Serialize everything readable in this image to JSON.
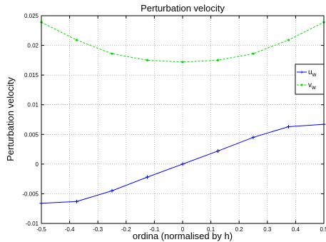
{
  "chart_data": {
    "type": "line",
    "title": "Perturbation velocity",
    "xlabel": "ordina (normalised by h)",
    "ylabel": "Perturbation velocity",
    "xlim": [
      -0.5,
      0.5
    ],
    "ylim": [
      -0.01,
      0.025
    ],
    "x_ticks": [
      -0.5,
      -0.4,
      -0.3,
      -0.2,
      -0.1,
      0,
      0.1,
      0.2,
      0.3,
      0.4,
      0.5
    ],
    "x_tick_labels": [
      "-0.5",
      "-0.4",
      "-0.3",
      "-0.2",
      "-0.1",
      "0",
      "0.1",
      "0.2",
      "0.3",
      "0.4",
      "0.5"
    ],
    "y_ticks": [
      -0.01,
      -0.005,
      0,
      0.005,
      0.01,
      0.015,
      0.02,
      0.025
    ],
    "y_tick_labels": [
      "-0.01",
      "-0.005",
      "0",
      "0.005",
      "0.01",
      "0.015",
      "0.02",
      "0.025"
    ],
    "grid": true,
    "legend_position": "right",
    "x": [
      -0.5,
      -0.375,
      -0.25,
      -0.125,
      0,
      0.125,
      0.25,
      0.375,
      0.5
    ],
    "series": [
      {
        "name": "u",
        "subscript": "w",
        "color": "#0000ff",
        "line_style": "solid",
        "marker": "plus",
        "values": [
          -0.0066,
          -0.0063,
          -0.0045,
          -0.0022,
          0.0,
          0.0022,
          0.0045,
          0.0063,
          0.0067
        ]
      },
      {
        "name": "v",
        "subscript": "w",
        "color": "#00e000",
        "line_style": "dashed",
        "marker": "dot",
        "values": [
          0.0239,
          0.0209,
          0.0186,
          0.0175,
          0.0172,
          0.0175,
          0.0186,
          0.0209,
          0.0239
        ]
      }
    ]
  }
}
